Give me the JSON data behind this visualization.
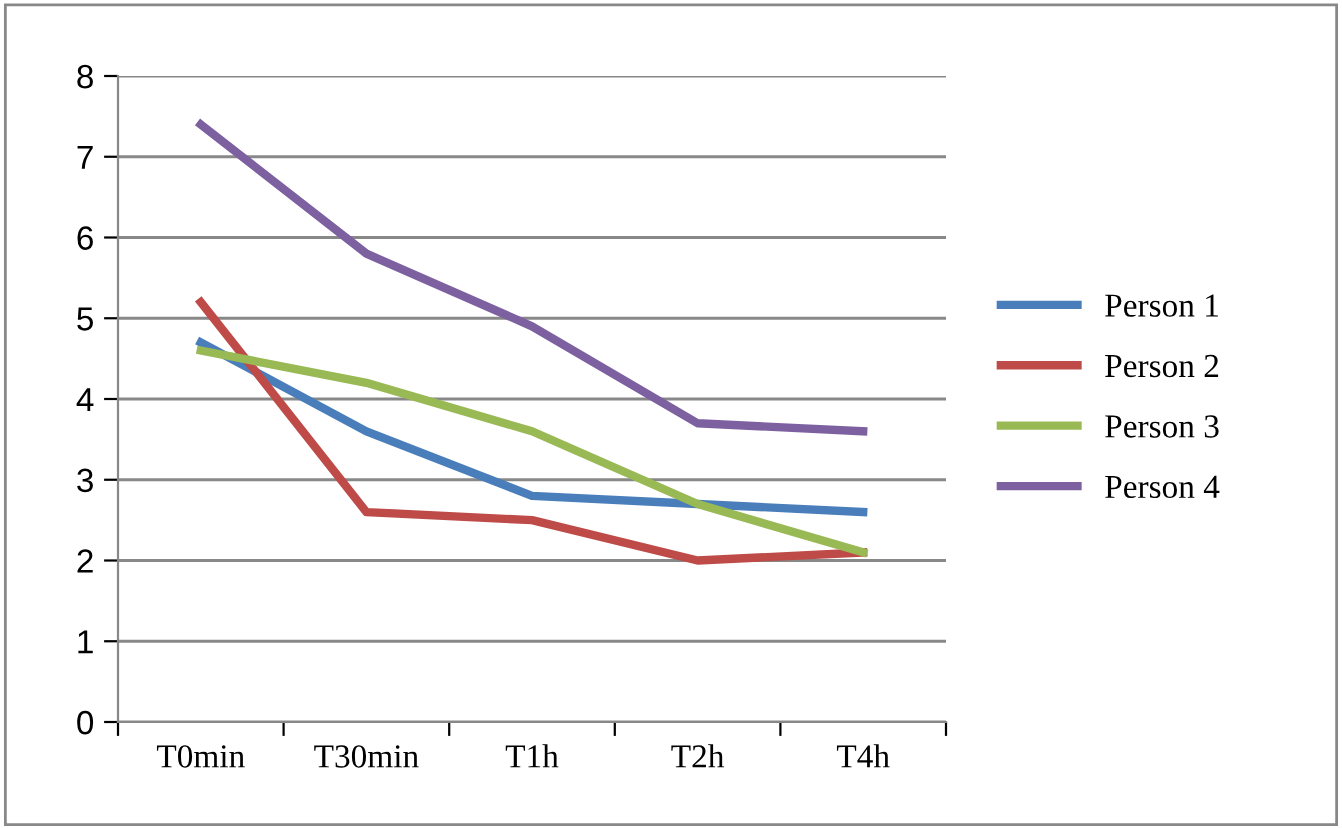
{
  "chart_data": {
    "type": "line",
    "categories": [
      "T0min",
      "T30min",
      "T1h",
      "T2h",
      "T4h"
    ],
    "series": [
      {
        "name": "Person 1",
        "color": "#4a7ebb",
        "values": [
          4.7,
          3.6,
          2.8,
          2.7,
          2.6
        ]
      },
      {
        "name": "Person 2",
        "color": "#be4b48",
        "values": [
          5.2,
          2.6,
          2.5,
          2.0,
          2.1
        ]
      },
      {
        "name": "Person 3",
        "color": "#98b954",
        "values": [
          4.6,
          4.2,
          3.6,
          2.7,
          2.1
        ]
      },
      {
        "name": "Person 4",
        "color": "#7d60a0",
        "values": [
          7.4,
          5.8,
          4.9,
          3.7,
          3.6
        ]
      }
    ],
    "ylim": [
      0,
      8
    ],
    "yticks": [
      0,
      1,
      2,
      3,
      4,
      5,
      6,
      7,
      8
    ],
    "grid": "y",
    "legend": "right",
    "marker": "none",
    "line_style": "solid"
  }
}
